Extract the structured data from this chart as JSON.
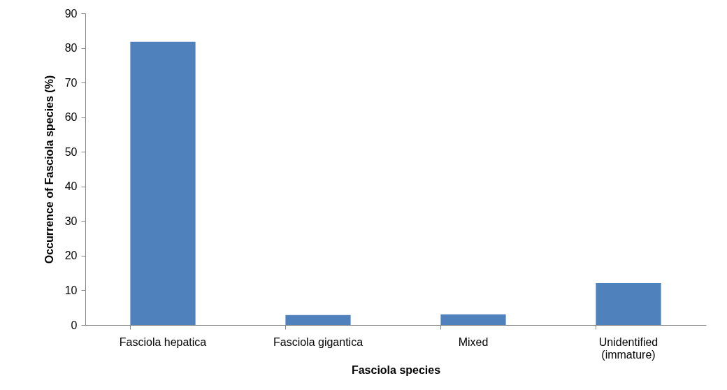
{
  "chart_data": {
    "type": "bar",
    "xlabel": "Fasciola species",
    "ylabel": "Occurrence of Fasciola species (%)",
    "categories": [
      "Fasciola hepatica",
      "Fasciola gigantica",
      "Mixed",
      "Unidentified (immature)"
    ],
    "values": [
      81.8,
      2.9,
      3.1,
      12.1
    ],
    "color": "#4f81bd",
    "ylim": [
      0,
      90
    ],
    "yticks": [
      0,
      10,
      20,
      30,
      40,
      50,
      60,
      70,
      80,
      90
    ],
    "grid": false
  }
}
